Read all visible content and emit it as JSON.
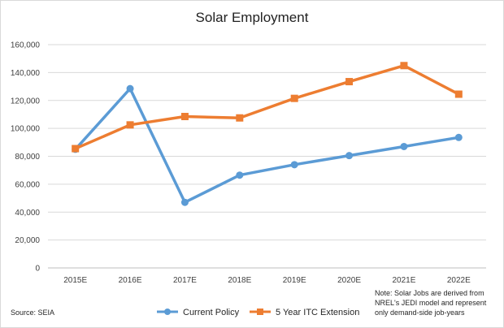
{
  "chart_data": {
    "type": "line",
    "title": "Solar Employment",
    "categories": [
      "2015E",
      "2016E",
      "2017E",
      "2018E",
      "2019E",
      "2020E",
      "2021E",
      "2022E"
    ],
    "ylim": [
      0,
      160000
    ],
    "yticks": [
      "0",
      "20,000",
      "40,000",
      "60,000",
      "80,000",
      "100,000",
      "120,000",
      "140,000",
      "160,000"
    ],
    "grid": true,
    "legend_position": "bottom",
    "series": [
      {
        "name": "Current Policy",
        "color": "#5b9bd5",
        "marker": "circle",
        "values": [
          85000,
          128500,
          47000,
          66500,
          74000,
          80500,
          87000,
          93500
        ]
      },
      {
        "name": "5 Year ITC Extension",
        "color": "#ed7d31",
        "marker": "square",
        "values": [
          85500,
          102500,
          108500,
          107500,
          121500,
          133500,
          145000,
          124500
        ]
      }
    ],
    "source": "Source: SEIA",
    "note": [
      "Note: Solar Jobs are derived from",
      "NREL's JEDI model and represent",
      "only demand-side job-years"
    ]
  }
}
